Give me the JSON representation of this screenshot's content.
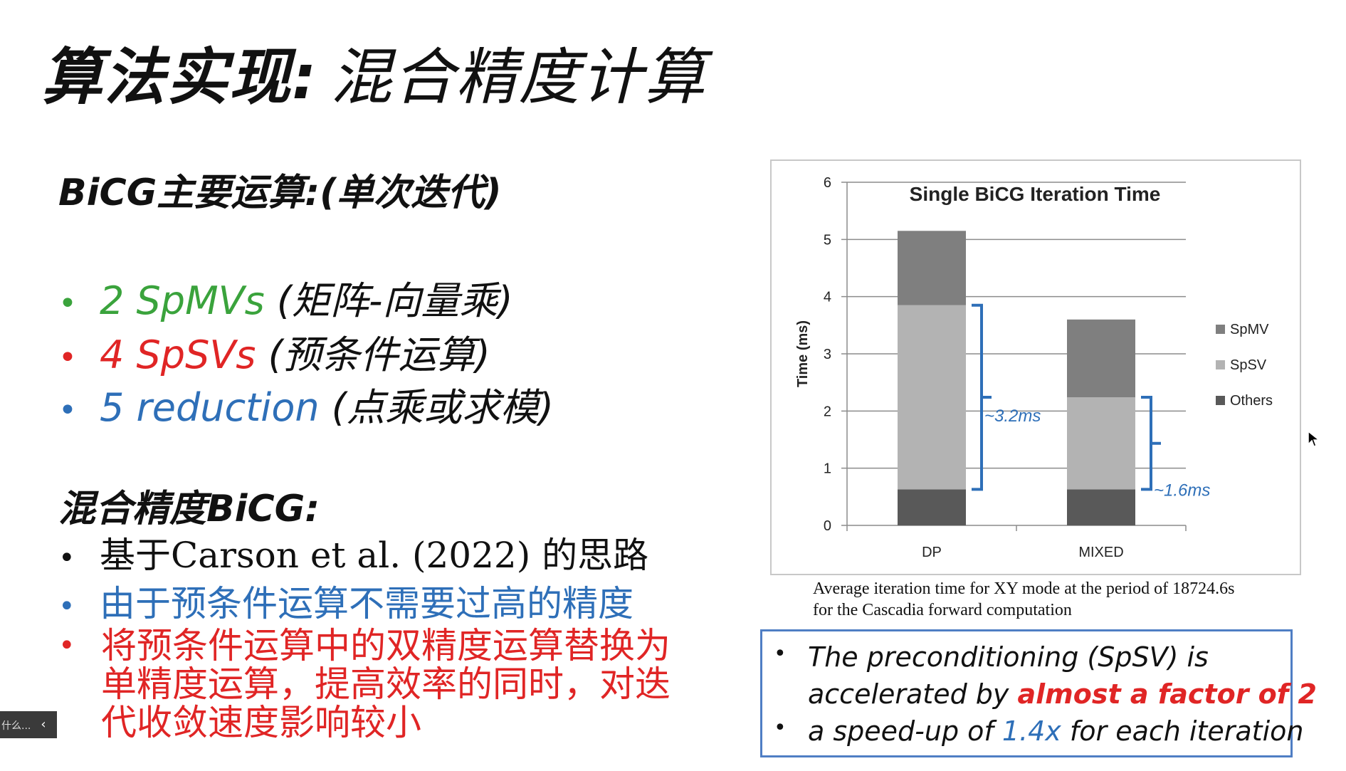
{
  "slide": {
    "title_a": "算法实现:",
    "title_b": "混合精度计算"
  },
  "section1": {
    "heading": "BiCG主要运算:(单次迭代)",
    "items": [
      {
        "bullet": "•",
        "main": "2 SpMVs",
        "paren": "(矩阵-向量乘)",
        "color": "#3aa33c"
      },
      {
        "bullet": "•",
        "main": "4 SpSVs",
        "paren": "(预条件运算)",
        "color": "#e02525"
      },
      {
        "bullet": "•",
        "main": "5 reduction",
        "paren": "(点乘或求模)",
        "color": "#2e6fb8"
      }
    ]
  },
  "section2": {
    "heading": "混合精度BiCG:",
    "items": [
      {
        "bullet": "•",
        "text": "基于Carson et al. (2022) 的思路",
        "color": "#111111"
      },
      {
        "bullet": "•",
        "text": "由于预条件运算不需要过高的精度",
        "color": "#2e6fb8"
      }
    ],
    "multi": {
      "bullet": "•",
      "lines": [
        "将预条件运算中的双精度运算替换为",
        "单精度运算，提高效率的同时，对迭",
        "代收敛速度影响较小"
      ]
    }
  },
  "chart_data": {
    "type": "bar",
    "stacked": true,
    "title": "Single BiCG Iteration Time",
    "ylabel": "Time (ms)",
    "xlabel": "",
    "categories": [
      "DP",
      "MIXED"
    ],
    "series": [
      {
        "name": "Others",
        "values": [
          0.63,
          0.63
        ],
        "color": "#595959"
      },
      {
        "name": "SpSV",
        "values": [
          3.22,
          1.61
        ],
        "color": "#b3b3b3"
      },
      {
        "name": "SpMV",
        "values": [
          1.3,
          1.36
        ],
        "color": "#7f7f7f"
      }
    ],
    "ylim": [
      0,
      6
    ],
    "yticks": [
      "0",
      "1",
      "2",
      "3",
      "4",
      "5",
      "6"
    ],
    "legend": {
      "placement": "right",
      "order": [
        "SpMV",
        "SpSV",
        "Others"
      ]
    },
    "grid": true,
    "annotations": [
      {
        "label": "~3.2ms",
        "category": "DP",
        "from": 0.63,
        "to": 3.85,
        "color": "#2e6fb8"
      },
      {
        "label": "~1.6ms",
        "category": "MIXED",
        "from": 0.63,
        "to": 2.24,
        "color": "#2e6fb8"
      }
    ]
  },
  "caption": {
    "line1": "Average iteration time for XY mode at the period of 18724.6s",
    "line2": "for the Cascadia forward computation"
  },
  "notes": {
    "b1_pre": "The preconditioning (SpSV) is",
    "b1_line2_pre": "accelerated by ",
    "b1_emph": "almost a factor of 2",
    "b2_pre": "a speed-up of ",
    "b2_hl": "1.4x",
    "b2_post": " for each iteration",
    "bullet": "•"
  },
  "taskbar": {
    "label": "什么...",
    "collapse_icon": "‹"
  }
}
